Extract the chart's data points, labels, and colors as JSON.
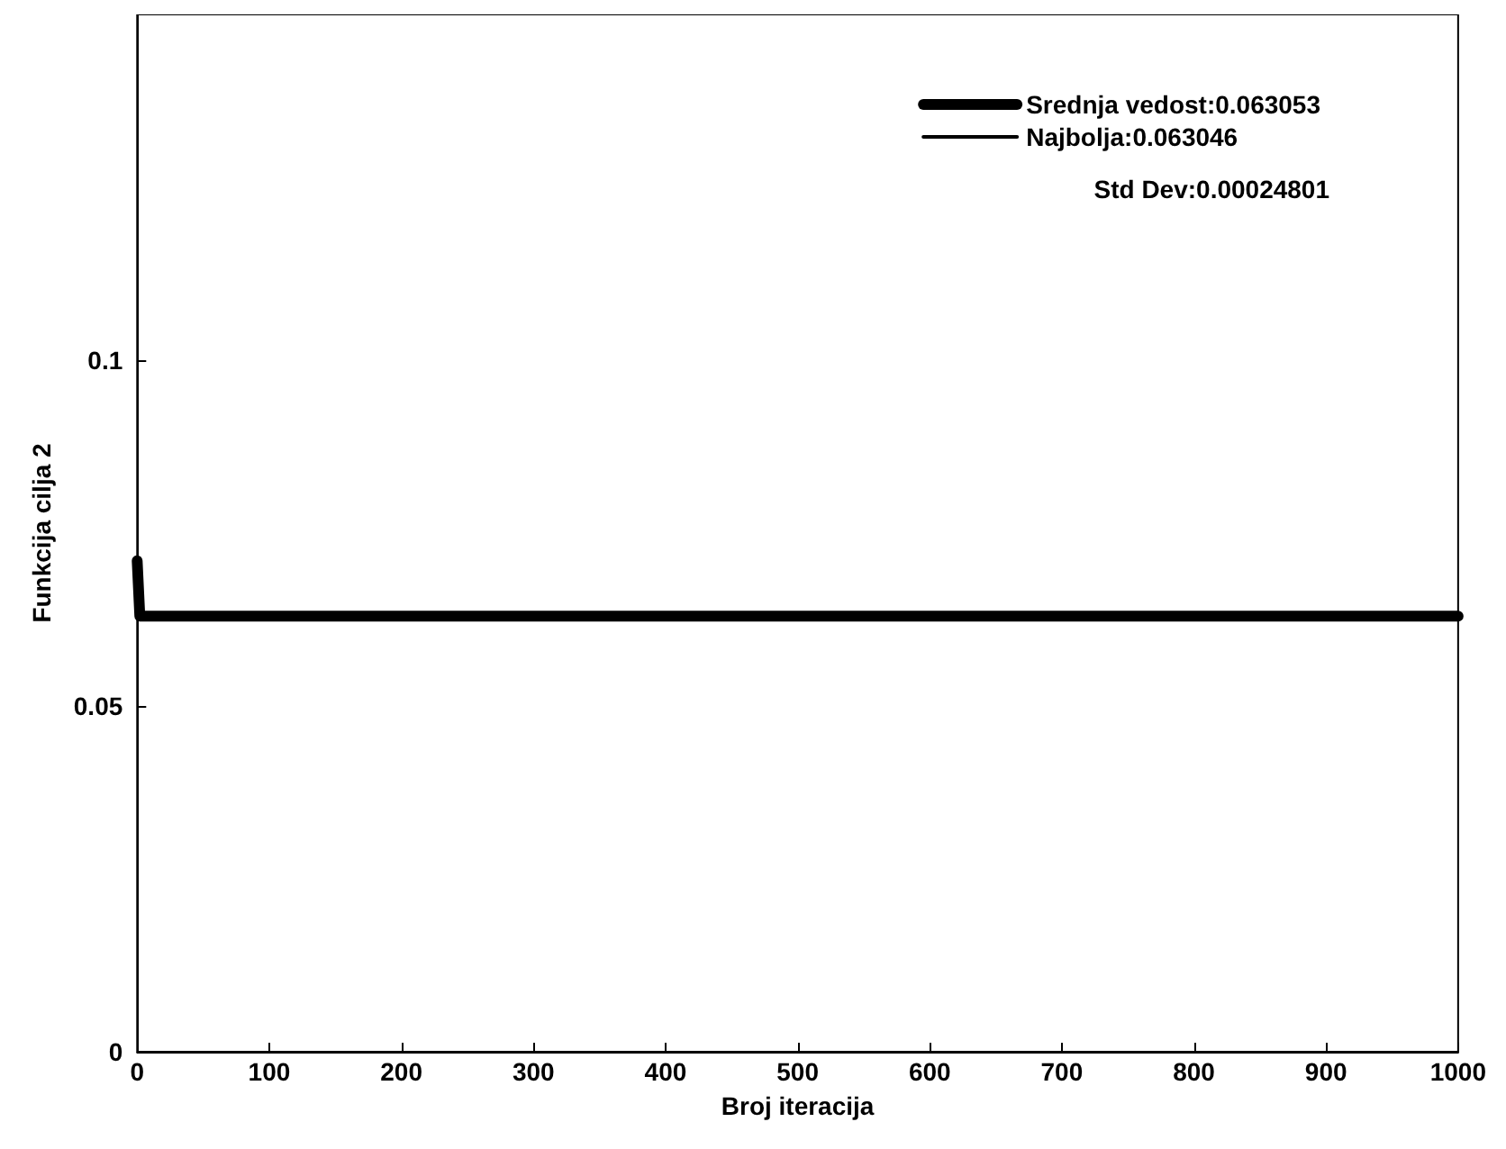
{
  "chart_data": {
    "type": "line",
    "xlabel": "Broj iteracija",
    "ylabel": "Funkcija cilja 2",
    "xlim": [
      0,
      1000
    ],
    "xticks": [
      0,
      100,
      200,
      300,
      400,
      500,
      600,
      700,
      800,
      900,
      1000
    ],
    "ylim": [
      0,
      0.15
    ],
    "yticks": [
      0,
      0.05,
      0.1
    ],
    "grid": false,
    "legend": "top right",
    "marker": "none",
    "line_style": "solid",
    "annotations": [
      "Std Dev:0.00024801"
    ],
    "series": [
      {
        "name": "Srednja vedost:0.063053",
        "color": "#000000",
        "x": [
          0,
          2,
          1000
        ],
        "values": [
          0.071,
          0.063,
          0.063
        ]
      },
      {
        "name": "Najbolja:0.063046",
        "color": "#000000"
      }
    ]
  }
}
